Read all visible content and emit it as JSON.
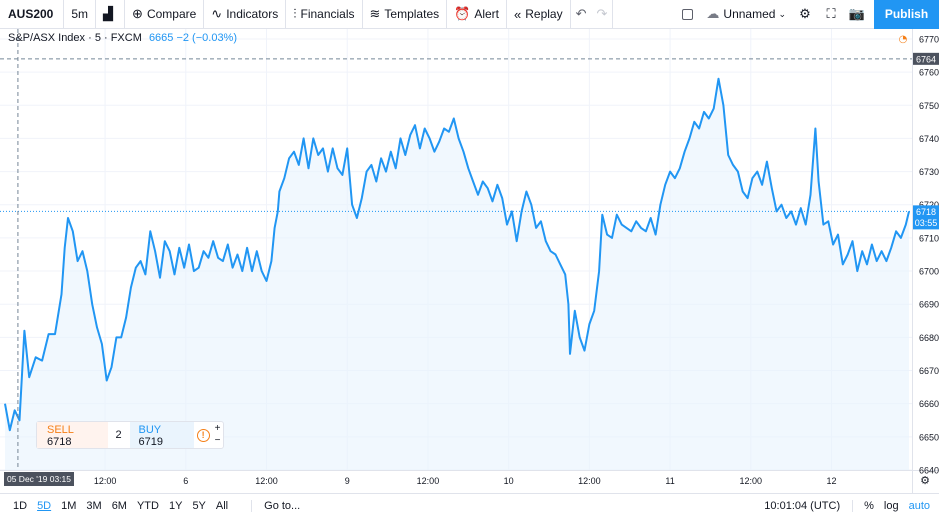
{
  "toolbar": {
    "symbol": "AUS200",
    "interval": "5m",
    "compare": "Compare",
    "indicators": "Indicators",
    "financials": "Financials",
    "templates": "Templates",
    "alert": "Alert",
    "replay": "Replay",
    "layout_name": "Unnamed",
    "publish": "Publish"
  },
  "legend": {
    "title": "S&P/ASX Index · 5 · FXCM",
    "value": "6665 −2 (−0.03%)"
  },
  "chart_data": {
    "type": "area",
    "title": "S&P/ASX Index · 5 · FXCM",
    "line_color": "#2196f3",
    "fill_color": "#e8f3fd",
    "ylim": [
      6640,
      6773
    ],
    "y_ticks": [
      6640,
      6650,
      6660,
      6670,
      6680,
      6690,
      6700,
      6710,
      6720,
      6730,
      6740,
      6750,
      6760,
      6770
    ],
    "x_ticks": [
      {
        "label": "12:00",
        "t": 0.5
      },
      {
        "label": "6",
        "t": 1.0
      },
      {
        "label": "12:00",
        "t": 1.5
      },
      {
        "label": "9",
        "t": 2.0
      },
      {
        "label": "12:00",
        "t": 2.5
      },
      {
        "label": "10",
        "t": 3.0
      },
      {
        "label": "12:00",
        "t": 3.5
      },
      {
        "label": "11",
        "t": 4.0
      },
      {
        "label": "12:00",
        "t": 4.5
      },
      {
        "label": "12",
        "t": 5.0
      }
    ],
    "t_range": [
      -0.12,
      5.48
    ],
    "series": [
      {
        "points": [
          [
            -0.12,
            6660
          ],
          [
            -0.09,
            6652
          ],
          [
            -0.06,
            6658
          ],
          [
            -0.03,
            6655
          ],
          [
            0.0,
            6682
          ],
          [
            0.03,
            6668
          ],
          [
            0.07,
            6674
          ],
          [
            0.11,
            6673
          ],
          [
            0.15,
            6681
          ],
          [
            0.19,
            6681
          ],
          [
            0.23,
            6693
          ],
          [
            0.25,
            6707
          ],
          [
            0.27,
            6716
          ],
          [
            0.3,
            6712
          ],
          [
            0.33,
            6703
          ],
          [
            0.36,
            6706
          ],
          [
            0.39,
            6700
          ],
          [
            0.42,
            6690
          ],
          [
            0.45,
            6683
          ],
          [
            0.48,
            6678
          ],
          [
            0.51,
            6667
          ],
          [
            0.54,
            6671
          ],
          [
            0.57,
            6680
          ],
          [
            0.6,
            6680
          ],
          [
            0.63,
            6686
          ],
          [
            0.66,
            6695
          ],
          [
            0.69,
            6701
          ],
          [
            0.72,
            6703
          ],
          [
            0.75,
            6699
          ],
          [
            0.78,
            6712
          ],
          [
            0.81,
            6706
          ],
          [
            0.84,
            6698
          ],
          [
            0.87,
            6709
          ],
          [
            0.9,
            6706
          ],
          [
            0.93,
            6699
          ],
          [
            0.96,
            6707
          ],
          [
            0.99,
            6701
          ],
          [
            1.02,
            6708
          ],
          [
            1.05,
            6700
          ],
          [
            1.08,
            6701
          ],
          [
            1.11,
            6706
          ],
          [
            1.14,
            6704
          ],
          [
            1.17,
            6709
          ],
          [
            1.2,
            6704
          ],
          [
            1.23,
            6703
          ],
          [
            1.26,
            6708
          ],
          [
            1.29,
            6701
          ],
          [
            1.32,
            6705
          ],
          [
            1.35,
            6700
          ],
          [
            1.38,
            6707
          ],
          [
            1.41,
            6700
          ],
          [
            1.44,
            6706
          ],
          [
            1.47,
            6700
          ],
          [
            1.5,
            6697
          ],
          [
            1.53,
            6703
          ],
          [
            1.55,
            6713
          ],
          [
            1.57,
            6718
          ],
          [
            1.58,
            6724
          ],
          [
            1.61,
            6728
          ],
          [
            1.64,
            6734
          ],
          [
            1.67,
            6736
          ],
          [
            1.7,
            6732
          ],
          [
            1.73,
            6740
          ],
          [
            1.76,
            6731
          ],
          [
            1.79,
            6740
          ],
          [
            1.82,
            6735
          ],
          [
            1.85,
            6737
          ],
          [
            1.88,
            6730
          ],
          [
            1.91,
            6737
          ],
          [
            1.94,
            6731
          ],
          [
            1.97,
            6729
          ],
          [
            2.0,
            6737
          ],
          [
            2.03,
            6720
          ],
          [
            2.06,
            6716
          ],
          [
            2.09,
            6722
          ],
          [
            2.12,
            6730
          ],
          [
            2.15,
            6732
          ],
          [
            2.18,
            6727
          ],
          [
            2.21,
            6734
          ],
          [
            2.24,
            6730
          ],
          [
            2.27,
            6736
          ],
          [
            2.3,
            6731
          ],
          [
            2.33,
            6740
          ],
          [
            2.36,
            6735
          ],
          [
            2.39,
            6741
          ],
          [
            2.42,
            6744
          ],
          [
            2.45,
            6737
          ],
          [
            2.48,
            6743
          ],
          [
            2.51,
            6740
          ],
          [
            2.54,
            6736
          ],
          [
            2.57,
            6739
          ],
          [
            2.6,
            6743
          ],
          [
            2.63,
            6742
          ],
          [
            2.66,
            6746
          ],
          [
            2.69,
            6740
          ],
          [
            2.72,
            6736
          ],
          [
            2.75,
            6731
          ],
          [
            2.78,
            6727
          ],
          [
            2.81,
            6723
          ],
          [
            2.84,
            6727
          ],
          [
            2.87,
            6725
          ],
          [
            2.9,
            6721
          ],
          [
            2.93,
            6726
          ],
          [
            2.96,
            6722
          ],
          [
            2.99,
            6714
          ],
          [
            3.02,
            6718
          ],
          [
            3.05,
            6709
          ],
          [
            3.08,
            6718
          ],
          [
            3.11,
            6724
          ],
          [
            3.14,
            6720
          ],
          [
            3.17,
            6713
          ],
          [
            3.2,
            6715
          ],
          [
            3.23,
            6709
          ],
          [
            3.26,
            6706
          ],
          [
            3.29,
            6705
          ],
          [
            3.32,
            6702
          ],
          [
            3.35,
            6699
          ],
          [
            3.37,
            6690
          ],
          [
            3.38,
            6675
          ],
          [
            3.41,
            6688
          ],
          [
            3.44,
            6680
          ],
          [
            3.47,
            6676
          ],
          [
            3.5,
            6684
          ],
          [
            3.53,
            6688
          ],
          [
            3.56,
            6700
          ],
          [
            3.58,
            6717
          ],
          [
            3.61,
            6711
          ],
          [
            3.64,
            6710
          ],
          [
            3.67,
            6717
          ],
          [
            3.7,
            6714
          ],
          [
            3.73,
            6713
          ],
          [
            3.76,
            6712
          ],
          [
            3.79,
            6715
          ],
          [
            3.82,
            6713
          ],
          [
            3.85,
            6712
          ],
          [
            3.88,
            6716
          ],
          [
            3.91,
            6711
          ],
          [
            3.94,
            6720
          ],
          [
            3.97,
            6726
          ],
          [
            4.0,
            6730
          ],
          [
            4.03,
            6728
          ],
          [
            4.06,
            6731
          ],
          [
            4.09,
            6736
          ],
          [
            4.12,
            6740
          ],
          [
            4.15,
            6745
          ],
          [
            4.18,
            6743
          ],
          [
            4.21,
            6748
          ],
          [
            4.24,
            6746
          ],
          [
            4.27,
            6749
          ],
          [
            4.3,
            6758
          ],
          [
            4.33,
            6750
          ],
          [
            4.36,
            6735
          ],
          [
            4.39,
            6732
          ],
          [
            4.42,
            6730
          ],
          [
            4.45,
            6724
          ],
          [
            4.48,
            6722
          ],
          [
            4.51,
            6728
          ],
          [
            4.54,
            6730
          ],
          [
            4.57,
            6726
          ],
          [
            4.6,
            6733
          ],
          [
            4.63,
            6725
          ],
          [
            4.66,
            6718
          ],
          [
            4.69,
            6720
          ],
          [
            4.72,
            6716
          ],
          [
            4.75,
            6718
          ],
          [
            4.78,
            6714
          ],
          [
            4.81,
            6719
          ],
          [
            4.84,
            6714
          ],
          [
            4.87,
            6723
          ],
          [
            4.9,
            6743
          ],
          [
            4.92,
            6727
          ],
          [
            4.95,
            6714
          ],
          [
            4.98,
            6715
          ],
          [
            5.01,
            6708
          ],
          [
            5.04,
            6711
          ],
          [
            5.07,
            6702
          ],
          [
            5.1,
            6705
          ],
          [
            5.13,
            6709
          ],
          [
            5.16,
            6700
          ],
          [
            5.19,
            6706
          ],
          [
            5.22,
            6702
          ],
          [
            5.25,
            6708
          ],
          [
            5.28,
            6703
          ],
          [
            5.31,
            6706
          ],
          [
            5.34,
            6703
          ],
          [
            5.37,
            6707
          ],
          [
            5.4,
            6712
          ],
          [
            5.43,
            6710
          ],
          [
            5.46,
            6714
          ],
          [
            5.48,
            6718
          ]
        ]
      }
    ],
    "last_price": 6718,
    "countdown": "03:55",
    "crosshair_price": 6764,
    "crosshair_time_label": "05 Dec '19   03:15",
    "crosshair_t": -0.04
  },
  "trade": {
    "sell_label": "SELL",
    "sell_price": "6718",
    "qty": "2",
    "buy_label": "BUY",
    "buy_price": "6719",
    "plus": "+",
    "minus": "−"
  },
  "bottom": {
    "ranges": [
      "1D",
      "5D",
      "1M",
      "3M",
      "6M",
      "YTD",
      "1Y",
      "5Y",
      "All"
    ],
    "active_range": "5D",
    "goto": "Go to...",
    "clock": "10:01:04 (UTC)",
    "percent": "%",
    "log": "log",
    "auto": "auto"
  },
  "colors": {
    "accent": "#2196f3",
    "sell": "#f57f17",
    "grid": "#f0f3fa"
  }
}
